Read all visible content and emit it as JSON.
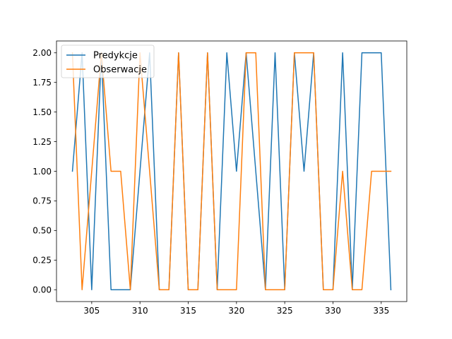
{
  "chart_data": {
    "type": "line",
    "title": "",
    "xlabel": "",
    "ylabel": "",
    "xlim": [
      301.35,
      337.65
    ],
    "ylim": [
      -0.1,
      2.1
    ],
    "grid": false,
    "legend_position": "top-left",
    "x_ticks": [
      305,
      310,
      315,
      320,
      325,
      330,
      335
    ],
    "x_tick_labels": [
      "305",
      "310",
      "315",
      "320",
      "325",
      "330",
      "335"
    ],
    "y_ticks": [
      0,
      0.25,
      0.5,
      0.75,
      1.0,
      1.25,
      1.5,
      1.75,
      2.0
    ],
    "y_tick_labels": [
      "0.00",
      "0.25",
      "0.50",
      "0.75",
      "1.00",
      "1.25",
      "1.50",
      "1.75",
      "2.00"
    ],
    "x": [
      303,
      304,
      305,
      306,
      307,
      308,
      309,
      310,
      311,
      312,
      313,
      314,
      315,
      316,
      317,
      318,
      319,
      320,
      321,
      322,
      323,
      324,
      325,
      326,
      327,
      328,
      329,
      330,
      331,
      332,
      333,
      334,
      335,
      336
    ],
    "series": [
      {
        "name": "Predykcje",
        "color": "#1f77b4",
        "values": [
          1,
          2,
          0,
          2,
          0,
          0,
          0,
          1,
          2,
          0,
          0,
          2,
          0,
          0,
          2,
          0,
          2,
          1,
          2,
          1,
          0,
          2,
          0,
          2,
          1,
          2,
          0,
          0,
          2,
          0,
          2,
          2,
          2,
          0
        ]
      },
      {
        "name": "Obserwacje",
        "color": "#ff7f0e",
        "values": [
          2,
          0,
          1,
          2,
          1,
          1,
          0,
          2,
          1,
          0,
          0,
          2,
          0,
          0,
          2,
          0,
          0,
          0,
          2,
          2,
          0,
          0,
          0,
          2,
          2,
          2,
          0,
          0,
          1,
          0,
          0,
          1,
          1,
          1
        ]
      }
    ]
  }
}
